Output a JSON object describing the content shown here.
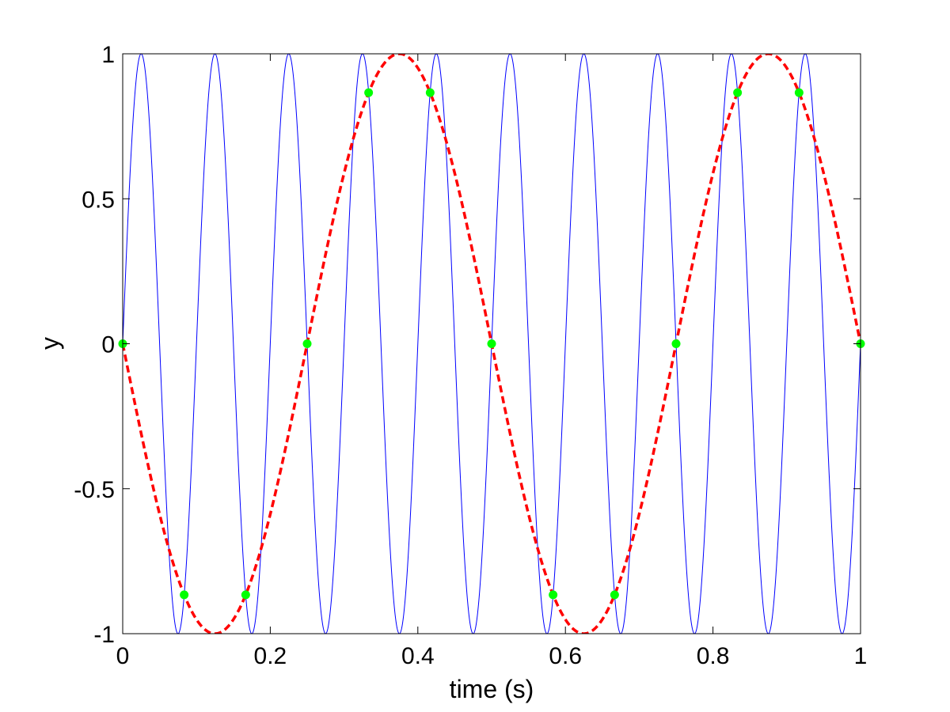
{
  "chart_data": {
    "type": "line",
    "title": "",
    "xlabel": "time (s)",
    "ylabel": "y",
    "xlim": [
      0,
      1
    ],
    "ylim": [
      -1,
      1
    ],
    "grid": false,
    "legend": "none",
    "x_ticks": [
      0,
      0.2,
      0.4,
      0.6,
      0.8,
      1
    ],
    "x_tick_labels": [
      "0",
      "0.2",
      "0.4",
      "0.6",
      "0.8",
      "1"
    ],
    "y_ticks": [
      -1,
      -0.5,
      0,
      0.5,
      1
    ],
    "y_tick_labels": [
      "-1",
      "-0.5",
      "0",
      "0.5",
      "1"
    ],
    "series": [
      {
        "function": "sin(2*pi*10*t)",
        "frequency_hz": 10,
        "amplitude": 1,
        "color": "#0000ff",
        "line_style": "solid"
      },
      {
        "function": "-sin(2*pi*2*t)",
        "frequency_hz": 2,
        "amplitude": -1,
        "color": "#ff0000",
        "line_style": "dashed"
      },
      {
        "type": "scatter",
        "color": "#00ff00",
        "marker": "circle",
        "x": [
          0,
          0.0833,
          0.1667,
          0.25,
          0.3333,
          0.4167,
          0.5,
          0.5833,
          0.6667,
          0.75,
          0.8333,
          0.9167,
          1
        ],
        "y": [
          0,
          -0.866,
          -0.866,
          0,
          0.866,
          0.866,
          0,
          -0.866,
          -0.866,
          0,
          0.866,
          0.866,
          0
        ]
      }
    ]
  },
  "colors": {
    "background": "#ffffff",
    "axes": "#000000"
  }
}
